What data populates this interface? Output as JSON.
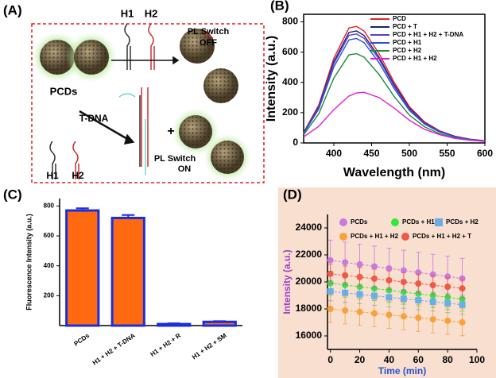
{
  "diagram": {
    "panel_label": "(A)",
    "texts": [
      "H1",
      "H2",
      "PL Switch",
      "OFF",
      "PCDs",
      "T-DNA",
      "+",
      "H1",
      "H2",
      "PL Switch",
      "ON"
    ]
  },
  "chart_data": [
    {
      "type": "line",
      "panel_label": "(B)",
      "x_label": "Wavelength (nm)",
      "y_label": "Intensity (a.u.)",
      "x": [
        360,
        380,
        400,
        420,
        430,
        440,
        460,
        480,
        500,
        520,
        540,
        560,
        580,
        600
      ],
      "series": [
        {
          "name": "PCD",
          "color": "#e8212b",
          "values": [
            70,
            250,
            560,
            760,
            770,
            740,
            590,
            400,
            240,
            140,
            80,
            45,
            25,
            15
          ]
        },
        {
          "name": "PCD + T",
          "color": "#1b1f7a",
          "values": [
            67,
            240,
            538,
            730,
            740,
            710,
            566,
            384,
            230,
            134,
            77,
            43,
            24,
            14
          ]
        },
        {
          "name": "PCD + H1 + H2 + T-DNA",
          "color": "#5a3fc0",
          "values": [
            65,
            234,
            524,
            711,
            720,
            692,
            552,
            374,
            224,
            131,
            75,
            42,
            23,
            14
          ]
        },
        {
          "name": "PCD + H1",
          "color": "#2a4fd8",
          "values": [
            63,
            224,
            502,
            681,
            690,
            663,
            529,
            358,
            215,
            125,
            72,
            40,
            22,
            13
          ]
        },
        {
          "name": "PCD + H2",
          "color": "#1f8a3a",
          "values": [
            54,
            192,
            429,
            582,
            590,
            567,
            452,
            306,
            184,
            107,
            61,
            34,
            19,
            11
          ]
        },
        {
          "name": "PCD + H1 + H2",
          "color": "#e21fd8",
          "values": [
            40,
            110,
            220,
            310,
            330,
            335,
            300,
            230,
            150,
            90,
            55,
            30,
            18,
            10
          ]
        }
      ],
      "xlim": [
        360,
        600
      ],
      "xticks": [
        400,
        450,
        500,
        550,
        600
      ],
      "ylim": [
        0,
        850
      ],
      "yticks": [
        0,
        200,
        400,
        600,
        800
      ]
    },
    {
      "type": "bar",
      "panel_label": "(C)",
      "y_label": "Fluorescence Intensity (a.u.)",
      "categories": [
        "PCDs",
        "H1 + H2 + T-DNA",
        "H1 + H2 + R",
        "H1 + H2 + SM"
      ],
      "values": [
        770,
        720,
        10,
        25
      ],
      "errors": [
        15,
        20,
        5,
        5
      ],
      "color": "#ff6a10",
      "edge_color": "#1a2ee0",
      "ylim": [
        0,
        850
      ],
      "yticks": [
        200,
        400,
        600,
        800
      ]
    },
    {
      "type": "scatter",
      "panel_label": "(D)",
      "x_label": "Time (min)",
      "y_label": "Intensity (a.u.)",
      "x": [
        0,
        10,
        20,
        30,
        40,
        50,
        60,
        70,
        80,
        90
      ],
      "series": [
        {
          "name": "PCDs",
          "color": "#c77be0",
          "marker": "circle",
          "error": 1500,
          "values": [
            21600,
            21450,
            21300,
            21150,
            21000,
            20850,
            20700,
            20550,
            20400,
            20250
          ]
        },
        {
          "name": "PCDs + H1",
          "color": "#33e83a",
          "marker": "circle",
          "error": 900,
          "values": [
            19900,
            19770,
            19640,
            19510,
            19380,
            19250,
            19120,
            18990,
            18860,
            18730
          ]
        },
        {
          "name": "PCDs + H2",
          "color": "#6aaee8",
          "marker": "square",
          "error": 700,
          "values": [
            19300,
            19190,
            19080,
            18970,
            18860,
            18750,
            18640,
            18530,
            18420,
            18310
          ]
        },
        {
          "name": "PCDs + H1 + H2",
          "color": "#f7a23a",
          "marker": "circle",
          "error": 1000,
          "values": [
            18000,
            17890,
            17780,
            17670,
            17560,
            17450,
            17340,
            17230,
            17120,
            17010
          ]
        },
        {
          "name": "PCDs + H1 + H2 + T",
          "color": "#ee5a48",
          "marker": "circle",
          "error": 700,
          "values": [
            20600,
            20480,
            20360,
            20240,
            20120,
            20000,
            19880,
            19760,
            19640,
            19520
          ]
        }
      ],
      "xlim": [
        -2,
        100
      ],
      "xticks": [
        0,
        20,
        40,
        60,
        80,
        100
      ],
      "ylim": [
        15000,
        25000
      ],
      "yticks": [
        16000,
        18000,
        20000,
        22000,
        24000
      ]
    }
  ]
}
